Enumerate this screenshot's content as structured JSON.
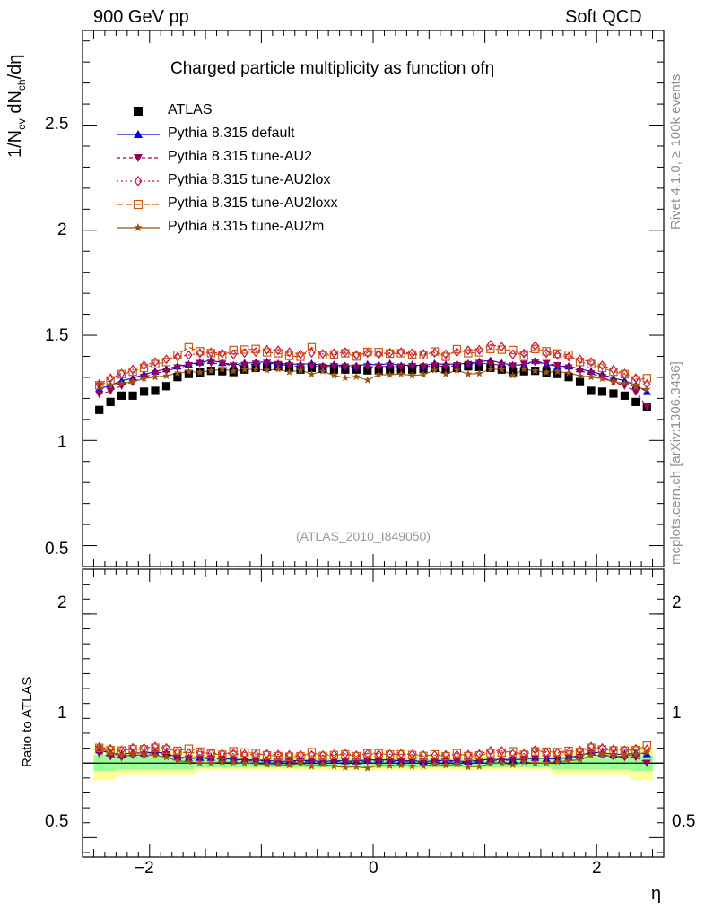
{
  "header": {
    "left": "900 GeV pp",
    "right": "Soft QCD"
  },
  "side_text": {
    "rivet": "Rivet 4.1.0, ≥ 100k events",
    "mcplots": "mcplots.cern.ch [arXiv:1306.3436]"
  },
  "watermark": "(ATLAS_2010_I849050)",
  "colors": {
    "atlas": "#000000",
    "default": "#0000dd",
    "au2": "#990055",
    "au2lox": "#cc1144",
    "au2loxx": "#cc5511",
    "au2m": "#995511",
    "band_inner": "#99ff99",
    "band_outer": "#ffff99"
  },
  "chart_data": [
    {
      "type": "scatter",
      "title": "Charged particle multiplicity as function ofη",
      "ylabel": "1/N_ev dN_ch/dη",
      "ylabel_parts": {
        "a": "1/N",
        "b": "ev",
        "c": " dN",
        "d": "ch",
        "e": "/dη"
      },
      "xlabel": "η",
      "xlim": [
        -2.6,
        2.6
      ],
      "ylim": [
        0.4,
        2.95
      ],
      "ytick_labels": [
        "0.5",
        "1",
        "1.5",
        "2",
        "2.5"
      ],
      "legend": {
        "position": "top-left",
        "entries": [
          "ATLAS",
          "Pythia 8.315 default",
          "Pythia 8.315 tune-AU2",
          "Pythia 8.315 tune-AU2lox",
          "Pythia 8.315 tune-AU2loxx",
          "Pythia 8.315 tune-AU2m"
        ]
      },
      "x": [
        -2.45,
        -2.35,
        -2.25,
        -2.15,
        -2.05,
        -1.95,
        -1.85,
        -1.75,
        -1.65,
        -1.55,
        -1.45,
        -1.35,
        -1.25,
        -1.15,
        -1.05,
        -0.95,
        -0.85,
        -0.75,
        -0.65,
        -0.55,
        -0.45,
        -0.35,
        -0.25,
        -0.15,
        -0.05,
        0.05,
        0.15,
        0.25,
        0.35,
        0.45,
        0.55,
        0.65,
        0.75,
        0.85,
        0.95,
        1.05,
        1.15,
        1.25,
        1.35,
        1.45,
        1.55,
        1.65,
        1.75,
        1.85,
        1.95,
        2.05,
        2.15,
        2.25,
        2.35,
        2.45
      ],
      "series": [
        {
          "name": "ATLAS",
          "marker": "square",
          "values": [
            1.145,
            1.183,
            1.213,
            1.213,
            1.232,
            1.236,
            1.258,
            1.301,
            1.316,
            1.323,
            1.331,
            1.329,
            1.325,
            1.337,
            1.345,
            1.349,
            1.352,
            1.345,
            1.337,
            1.345,
            1.341,
            1.337,
            1.337,
            1.337,
            1.333,
            1.333,
            1.337,
            1.337,
            1.337,
            1.341,
            1.345,
            1.337,
            1.345,
            1.352,
            1.349,
            1.345,
            1.337,
            1.325,
            1.329,
            1.331,
            1.323,
            1.316,
            1.301,
            1.278,
            1.236,
            1.232,
            1.223,
            1.213,
            1.183,
            1.16
          ]
        },
        {
          "name": "Pythia 8.315 default",
          "marker": "triangle-up",
          "values": [
            1.245,
            1.262,
            1.284,
            1.296,
            1.314,
            1.328,
            1.34,
            1.353,
            1.362,
            1.372,
            1.38,
            1.37,
            1.358,
            1.368,
            1.37,
            1.375,
            1.366,
            1.364,
            1.361,
            1.366,
            1.355,
            1.36,
            1.356,
            1.355,
            1.362,
            1.36,
            1.366,
            1.356,
            1.36,
            1.355,
            1.366,
            1.361,
            1.364,
            1.366,
            1.375,
            1.38,
            1.368,
            1.358,
            1.36,
            1.38,
            1.362,
            1.352,
            1.353,
            1.34,
            1.328,
            1.314,
            1.296,
            1.284,
            1.262,
            1.232
          ]
        },
        {
          "name": "Pythia 8.315 tune-AU2",
          "marker": "triangle-down",
          "values": [
            1.22,
            1.235,
            1.26,
            1.278,
            1.301,
            1.318,
            1.33,
            1.346,
            1.357,
            1.367,
            1.369,
            1.364,
            1.355,
            1.358,
            1.364,
            1.368,
            1.362,
            1.356,
            1.351,
            1.355,
            1.35,
            1.353,
            1.35,
            1.346,
            1.351,
            1.35,
            1.354,
            1.35,
            1.353,
            1.35,
            1.355,
            1.351,
            1.356,
            1.362,
            1.368,
            1.364,
            1.358,
            1.355,
            1.364,
            1.369,
            1.367,
            1.357,
            1.346,
            1.33,
            1.318,
            1.301,
            1.278,
            1.26,
            1.23,
            1.16
          ]
        },
        {
          "name": "Pythia 8.315 tune-AU2lox",
          "marker": "diamond-open",
          "values": [
            1.268,
            1.296,
            1.318,
            1.337,
            1.357,
            1.373,
            1.386,
            1.398,
            1.406,
            1.415,
            1.419,
            1.414,
            1.409,
            1.416,
            1.421,
            1.431,
            1.429,
            1.42,
            1.41,
            1.417,
            1.412,
            1.415,
            1.42,
            1.407,
            1.416,
            1.41,
            1.417,
            1.42,
            1.415,
            1.412,
            1.417,
            1.41,
            1.42,
            1.429,
            1.431,
            1.455,
            1.446,
            1.409,
            1.414,
            1.45,
            1.415,
            1.406,
            1.398,
            1.386,
            1.373,
            1.357,
            1.337,
            1.318,
            1.296,
            1.268
          ]
        },
        {
          "name": "Pythia 8.315 tune-AU2loxx",
          "marker": "square-open",
          "values": [
            1.262,
            1.286,
            1.315,
            1.327,
            1.345,
            1.363,
            1.373,
            1.408,
            1.443,
            1.424,
            1.415,
            1.403,
            1.43,
            1.432,
            1.435,
            1.419,
            1.415,
            1.402,
            1.398,
            1.443,
            1.405,
            1.409,
            1.415,
            1.399,
            1.421,
            1.42,
            1.413,
            1.415,
            1.409,
            1.405,
            1.423,
            1.398,
            1.434,
            1.415,
            1.419,
            1.435,
            1.432,
            1.43,
            1.403,
            1.435,
            1.424,
            1.413,
            1.408,
            1.373,
            1.363,
            1.345,
            1.327,
            1.315,
            1.286,
            1.296
          ]
        },
        {
          "name": "Pythia 8.315 tune-AU2m",
          "marker": "star",
          "values": [
            1.268,
            1.26,
            1.271,
            1.279,
            1.294,
            1.301,
            1.307,
            1.321,
            1.327,
            1.324,
            1.331,
            1.339,
            1.33,
            1.337,
            1.339,
            1.334,
            1.339,
            1.325,
            1.334,
            1.315,
            1.329,
            1.309,
            1.298,
            1.303,
            1.287,
            1.313,
            1.312,
            1.316,
            1.309,
            1.313,
            1.334,
            1.316,
            1.334,
            1.316,
            1.318,
            1.339,
            1.337,
            1.309,
            1.339,
            1.331,
            1.324,
            1.327,
            1.321,
            1.307,
            1.301,
            1.294,
            1.279,
            1.271,
            1.253,
            1.243
          ]
        }
      ]
    },
    {
      "type": "scatter",
      "title": "",
      "ylabel": "Ratio to ATLAS",
      "xlabel": "η",
      "xlim": [
        -2.6,
        2.6
      ],
      "ylim": [
        0.37,
        2.3
      ],
      "ytick_labels": [
        "0.5",
        "1",
        "2"
      ],
      "xtick_labels": [
        "−2",
        "0",
        "2"
      ],
      "band_note": "ATLAS relative uncertainty bands (inner = stat+syst core, outer = total)",
      "band_inner_halfwidth": [
        0.055,
        0.055,
        0.045,
        0.045,
        0.045,
        0.045,
        0.045,
        0.045,
        0.045,
        0.03,
        0.03,
        0.03,
        0.03,
        0.03,
        0.03,
        0.03,
        0.03,
        0.03,
        0.03,
        0.03,
        0.03,
        0.03,
        0.03,
        0.03,
        0.03,
        0.03,
        0.03,
        0.03,
        0.03,
        0.03,
        0.03,
        0.03,
        0.03,
        0.03,
        0.03,
        0.03,
        0.03,
        0.03,
        0.03,
        0.03,
        0.03,
        0.045,
        0.045,
        0.045,
        0.045,
        0.045,
        0.045,
        0.045,
        0.055,
        0.055
      ],
      "band_outer_halfwidth": [
        0.115,
        0.115,
        0.075,
        0.075,
        0.075,
        0.075,
        0.075,
        0.075,
        0.075,
        0.05,
        0.05,
        0.05,
        0.05,
        0.05,
        0.05,
        0.05,
        0.05,
        0.05,
        0.05,
        0.05,
        0.05,
        0.05,
        0.05,
        0.05,
        0.05,
        0.05,
        0.05,
        0.05,
        0.05,
        0.05,
        0.05,
        0.05,
        0.05,
        0.05,
        0.05,
        0.05,
        0.05,
        0.05,
        0.05,
        0.05,
        0.05,
        0.075,
        0.075,
        0.075,
        0.075,
        0.075,
        0.075,
        0.075,
        0.115,
        0.115
      ]
    }
  ]
}
